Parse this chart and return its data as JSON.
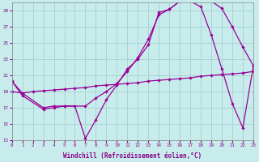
{
  "xlabel": "Windchill (Refroidissement éolien,°C)",
  "bg_color": "#c8ecec",
  "grid_color": "#aad4d4",
  "line_color": "#990099",
  "xlim": [
    0,
    23
  ],
  "ylim": [
    13,
    30
  ],
  "yticks": [
    13,
    15,
    17,
    19,
    21,
    23,
    25,
    27,
    29
  ],
  "xticks": [
    0,
    1,
    2,
    3,
    4,
    5,
    6,
    7,
    8,
    9,
    10,
    11,
    12,
    13,
    14,
    15,
    16,
    17,
    18,
    19,
    20,
    21,
    22,
    23
  ],
  "line1_x": [
    0,
    1,
    3,
    4,
    5,
    7,
    8,
    9,
    10,
    11,
    12,
    13,
    14,
    15,
    16,
    17,
    18,
    19,
    20,
    21,
    22,
    23
  ],
  "line1_y": [
    20.3,
    18.8,
    17.0,
    17.2,
    17.2,
    17.2,
    18.2,
    19.0,
    20.0,
    21.5,
    23.2,
    25.5,
    28.5,
    29.2,
    30.2,
    30.2,
    30.2,
    30.2,
    29.3,
    27.0,
    24.5,
    22.2
  ],
  "line2_x": [
    0,
    1,
    3,
    4,
    5,
    6,
    7,
    8,
    9,
    10,
    11,
    12,
    13,
    14,
    15,
    16,
    17,
    18,
    19,
    20,
    21,
    22,
    23
  ],
  "line2_y": [
    20.3,
    18.5,
    16.8,
    17.0,
    17.2,
    17.2,
    13.2,
    15.5,
    18.0,
    19.8,
    21.8,
    23.0,
    24.8,
    28.8,
    29.2,
    30.2,
    30.2,
    29.5,
    26.0,
    21.8,
    17.5,
    14.5,
    22.2
  ],
  "line3_x": [
    0,
    1,
    2,
    3,
    4,
    5,
    6,
    7,
    8,
    9,
    10,
    11,
    12,
    13,
    14,
    15,
    16,
    17,
    18,
    19,
    20,
    21,
    22,
    23
  ],
  "line3_y": [
    19.0,
    18.8,
    19.0,
    19.1,
    19.2,
    19.3,
    19.4,
    19.5,
    19.7,
    19.8,
    19.9,
    20.0,
    20.1,
    20.3,
    20.4,
    20.5,
    20.6,
    20.7,
    20.9,
    21.0,
    21.1,
    21.2,
    21.3,
    21.5
  ]
}
